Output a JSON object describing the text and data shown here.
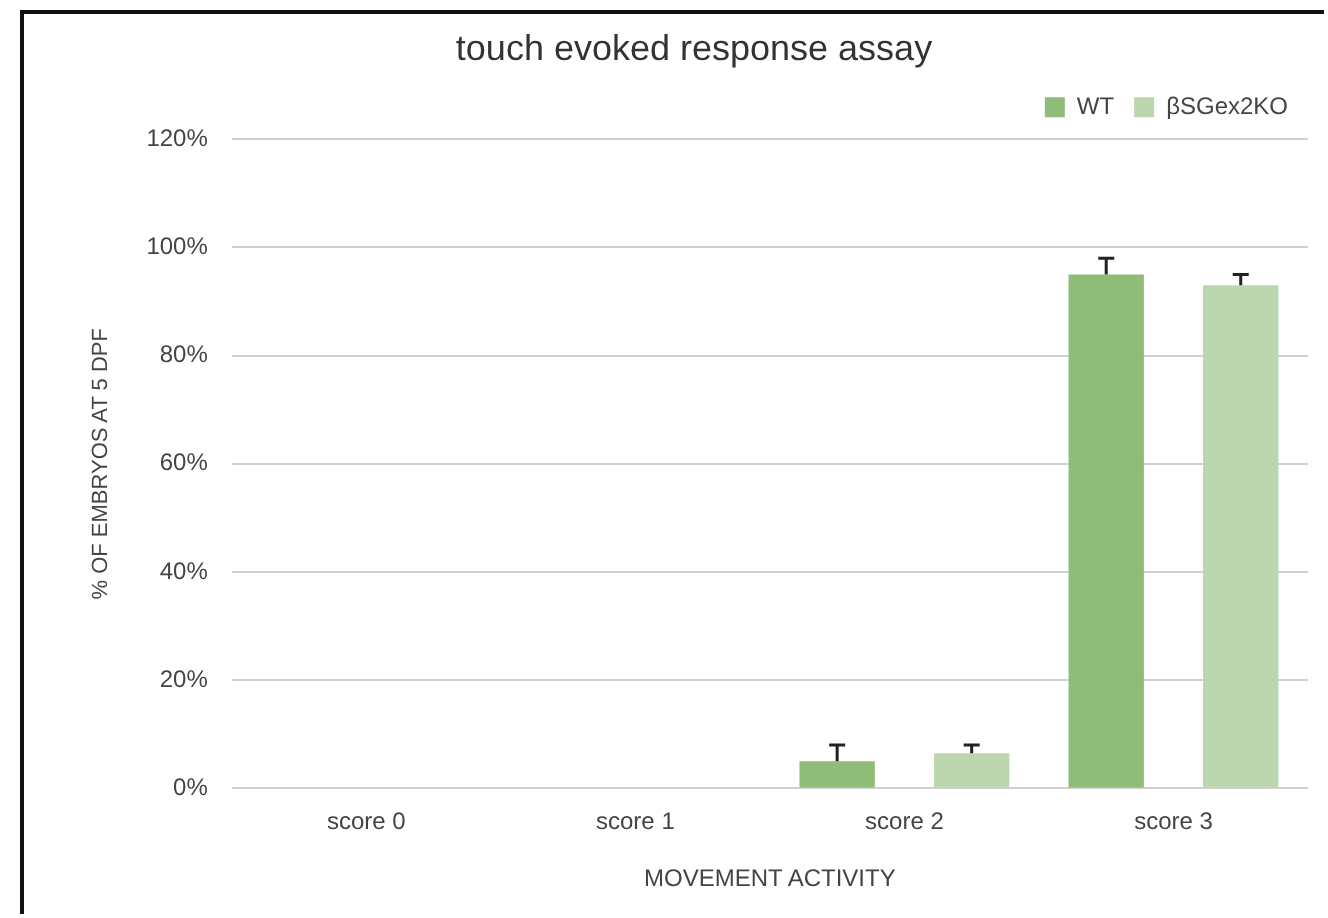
{
  "chart_data": {
    "type": "bar",
    "title": "touch evoked response assay",
    "xlabel": "MOVEMENT ACTIVITY",
    "ylabel": "% OF EMBRYOS AT 5 DPF",
    "categories": [
      "score 0",
      "score 1",
      "score 2",
      "score 3"
    ],
    "series": [
      {
        "name": "WT",
        "color": "#8fbc78",
        "values": [
          0,
          0,
          0.05,
          0.95
        ],
        "errors": [
          null,
          null,
          [
            0.05,
            0.08
          ],
          [
            0.95,
            0.98
          ]
        ]
      },
      {
        "name": "βSGex2KO",
        "color": "#bcd6ad",
        "values": [
          0,
          0,
          0.065,
          0.93
        ],
        "errors": [
          null,
          null,
          [
            0.065,
            0.08
          ],
          [
            0.93,
            0.95
          ]
        ]
      }
    ],
    "ylim": [
      0,
      1.2
    ],
    "yticks": [
      {
        "value": 0,
        "label": "0%"
      },
      {
        "value": 0.2,
        "label": "20%"
      },
      {
        "value": 0.4,
        "label": "40%"
      },
      {
        "value": 0.6,
        "label": "60%"
      },
      {
        "value": 0.8,
        "label": "80%"
      },
      {
        "value": 1,
        "label": "100%"
      },
      {
        "value": 1.2,
        "label": "120%"
      }
    ],
    "grid": "y",
    "legend": "top right"
  }
}
